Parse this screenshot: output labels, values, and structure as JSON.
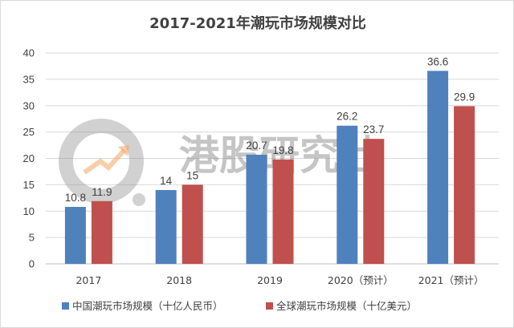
{
  "chart_data": {
    "type": "bar",
    "title": "2017-2021年潮玩市场规模对比",
    "categories": [
      "2017",
      "2018",
      "2019",
      "2020（预计）",
      "2021（预计）"
    ],
    "series": [
      {
        "name": "中国潮玩市场规模（十亿人民币）",
        "values": [
          10.8,
          14,
          20.7,
          26.2,
          36.6
        ],
        "color": "#4f81bd"
      },
      {
        "name": "全球潮玩市场规模（十亿美元）",
        "values": [
          11.9,
          15,
          19.8,
          23.7,
          29.9
        ],
        "color": "#c0504d"
      }
    ],
    "ylim": [
      0,
      40
    ],
    "yticks": [
      "0",
      "5",
      "10",
      "15",
      "20",
      "25",
      "30",
      "35",
      "40"
    ],
    "grid": true,
    "legend": "bottom"
  },
  "watermark": {
    "text": "港股研究社",
    "icon": "magnifier-chart-logo"
  }
}
